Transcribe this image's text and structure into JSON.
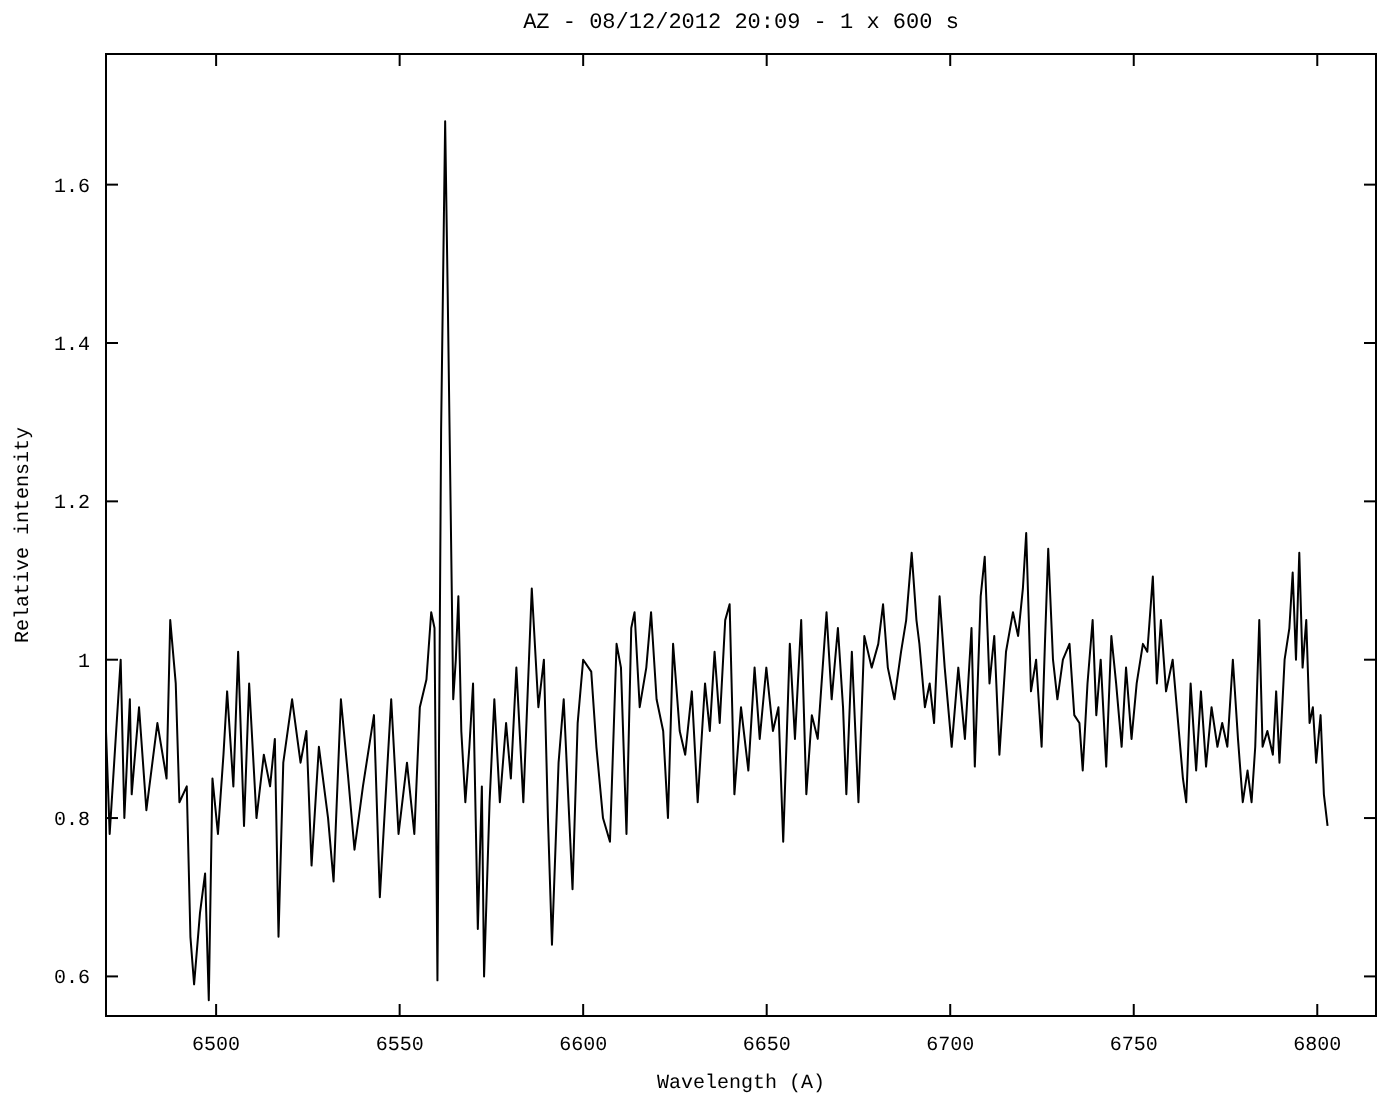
{
  "chart_data": {
    "type": "line",
    "title": "AZ - 08/12/2012 20:09 - 1 x 600 s",
    "xlabel": "Wavelength (A)",
    "ylabel": "Relative intensity",
    "xlim": [
      6470,
      6816
    ],
    "ylim": [
      0.55,
      1.765
    ],
    "xticks": [
      6500,
      6550,
      6600,
      6650,
      6700,
      6750,
      6800
    ],
    "yticks": [
      {
        "value": 0.6,
        "label": "0.6"
      },
      {
        "value": 0.8,
        "label": "0.8"
      },
      1,
      {
        "value": 1.2,
        "label": "1.2"
      },
      {
        "value": 1.4,
        "label": "1.4"
      },
      {
        "value": 1.6,
        "label": "1.6"
      }
    ],
    "series": [
      {
        "color": "#000000",
        "x": [
          6470,
          6471,
          6474,
          6475,
          6476.5,
          6477,
          6479,
          6481,
          6484,
          6486.5,
          6487.5,
          6489,
          6490,
          6492,
          6493,
          6494,
          6495.6,
          6497,
          6498,
          6499,
          6500.5,
          6502,
          6503,
          6504.7,
          6506,
          6507.6,
          6509,
          6511,
          6513,
          6514.7,
          6516,
          6517,
          6518.3,
          6520.7,
          6523,
          6524.6,
          6526,
          6528,
          6530.5,
          6532,
          6534,
          6536,
          6537.7,
          6540,
          6543,
          6544.6,
          6547.7,
          6549.7,
          6552,
          6554,
          6555.5,
          6557.3,
          6558.6,
          6559.5,
          6560.3,
          6561.3,
          6562.4,
          6563.1,
          6563.9,
          6564.6,
          6565.3,
          6566,
          6566.8,
          6567.9,
          6569,
          6570,
          6571.3,
          6572.4,
          6573,
          6574.5,
          6575.8,
          6577.3,
          6579,
          6580.3,
          6581.8,
          6583.7,
          6586,
          6587.8,
          6589.3,
          6590.4,
          6591.5,
          6593.3,
          6594.7,
          6595.8,
          6597.1,
          6598.5,
          6600,
          6602.2,
          6603.6,
          6605.4,
          6607.3,
          6609.1,
          6610.3,
          6611.8,
          6613.1,
          6614,
          6615.4,
          6617.2,
          6618.5,
          6620,
          6621.8,
          6623.1,
          6624.5,
          6626.3,
          6627.8,
          6629.6,
          6631.2,
          6633.2,
          6634.5,
          6635.8,
          6637.2,
          6638.7,
          6639.9,
          6641.2,
          6643,
          6645,
          6646.7,
          6648.1,
          6649.9,
          6651.7,
          6653.2,
          6654.5,
          6656.3,
          6657.7,
          6659.4,
          6660.8,
          6662.3,
          6663.9,
          6666.3,
          6667.7,
          6669.4,
          6670.8,
          6671.7,
          6673.2,
          6675,
          6676.6,
          6678.6,
          6680.4,
          6681.7,
          6683,
          6684.8,
          6686.6,
          6688,
          6689.5,
          6690.8,
          6691.6,
          6693.1,
          6694.4,
          6695.6,
          6697.1,
          6698.5,
          6700.4,
          6702.2,
          6704,
          6705.8,
          6706.7,
          6708.3,
          6709.4,
          6710.7,
          6712,
          6713.4,
          6715.2,
          6717.1,
          6718.5,
          6719.8,
          6720.7,
          6722,
          6723.4,
          6724.9,
          6725.8,
          6726.7,
          6728,
          6729.2,
          6730.7,
          6732.5,
          6733.8,
          6735.2,
          6736.1,
          6737.4,
          6738.8,
          6739.8,
          6741,
          6742.5,
          6743.9,
          6745.2,
          6746.7,
          6747.9,
          6749.4,
          6750.8,
          6752.5,
          6753.7,
          6755.2,
          6756.3,
          6757.4,
          6758.8,
          6760.6,
          6762.1,
          6763.4,
          6764.3,
          6765.5,
          6767,
          6768.3,
          6769.7,
          6771.2,
          6772.8,
          6774.1,
          6775.5,
          6777,
          6778.4,
          6779.7,
          6781,
          6782.1,
          6783.1,
          6784.2,
          6785.1,
          6786.4,
          6787.9,
          6788.8,
          6789.7,
          6791.1,
          6792.4,
          6793.3,
          6794.2,
          6795.1,
          6796,
          6797,
          6797.9,
          6798.8,
          6799.7,
          6800.9,
          6801.8,
          6802.8
        ],
        "values": [
          0.91,
          0.78,
          1.0,
          0.8,
          0.95,
          0.83,
          0.94,
          0.81,
          0.92,
          0.85,
          1.05,
          0.97,
          0.82,
          0.84,
          0.65,
          0.59,
          0.68,
          0.73,
          0.57,
          0.85,
          0.78,
          0.88,
          0.96,
          0.84,
          1.01,
          0.79,
          0.97,
          0.8,
          0.88,
          0.84,
          0.9,
          0.65,
          0.87,
          0.95,
          0.87,
          0.91,
          0.74,
          0.89,
          0.8,
          0.72,
          0.95,
          0.85,
          0.76,
          0.84,
          0.93,
          0.7,
          0.95,
          0.78,
          0.87,
          0.78,
          0.94,
          0.975,
          1.06,
          1.04,
          0.595,
          1.29,
          1.68,
          1.46,
          1.19,
          0.95,
          1.0,
          1.08,
          0.91,
          0.82,
          0.89,
          0.97,
          0.66,
          0.84,
          0.6,
          0.82,
          0.95,
          0.82,
          0.92,
          0.85,
          0.99,
          0.82,
          1.09,
          0.94,
          1.0,
          0.8,
          0.64,
          0.87,
          0.95,
          0.84,
          0.71,
          0.92,
          1.0,
          0.985,
          0.89,
          0.8,
          0.77,
          1.02,
          0.99,
          0.78,
          1.04,
          1.06,
          0.94,
          0.99,
          1.06,
          0.95,
          0.91,
          0.8,
          1.02,
          0.91,
          0.88,
          0.96,
          0.82,
          0.97,
          0.91,
          1.01,
          0.92,
          1.05,
          1.07,
          0.83,
          0.94,
          0.86,
          0.99,
          0.9,
          0.99,
          0.91,
          0.94,
          0.77,
          1.02,
          0.9,
          1.05,
          0.83,
          0.93,
          0.9,
          1.06,
          0.95,
          1.04,
          0.94,
          0.83,
          1.01,
          0.82,
          1.03,
          0.99,
          1.02,
          1.07,
          0.99,
          0.95,
          1.01,
          1.05,
          1.135,
          1.05,
          1.02,
          0.94,
          0.97,
          0.92,
          1.08,
          0.99,
          0.89,
          0.99,
          0.9,
          1.04,
          0.865,
          1.08,
          1.13,
          0.97,
          1.03,
          0.88,
          1.01,
          1.06,
          1.03,
          1.09,
          1.16,
          0.96,
          1.0,
          0.89,
          1.02,
          1.14,
          1.0,
          0.95,
          1.0,
          1.02,
          0.93,
          0.92,
          0.86,
          0.97,
          1.05,
          0.93,
          1.0,
          0.865,
          1.03,
          0.97,
          0.89,
          0.99,
          0.9,
          0.97,
          1.02,
          1.01,
          1.105,
          0.97,
          1.05,
          0.96,
          1.0,
          0.92,
          0.85,
          0.82,
          0.97,
          0.86,
          0.96,
          0.865,
          0.94,
          0.89,
          0.92,
          0.89,
          1.0,
          0.9,
          0.82,
          0.86,
          0.82,
          0.89,
          1.05,
          0.89,
          0.91,
          0.88,
          0.96,
          0.87,
          1.0,
          1.04,
          1.11,
          1.0,
          1.135,
          0.99,
          1.05,
          0.92,
          0.94,
          0.87,
          0.93,
          0.83,
          0.79
        ]
      }
    ]
  }
}
